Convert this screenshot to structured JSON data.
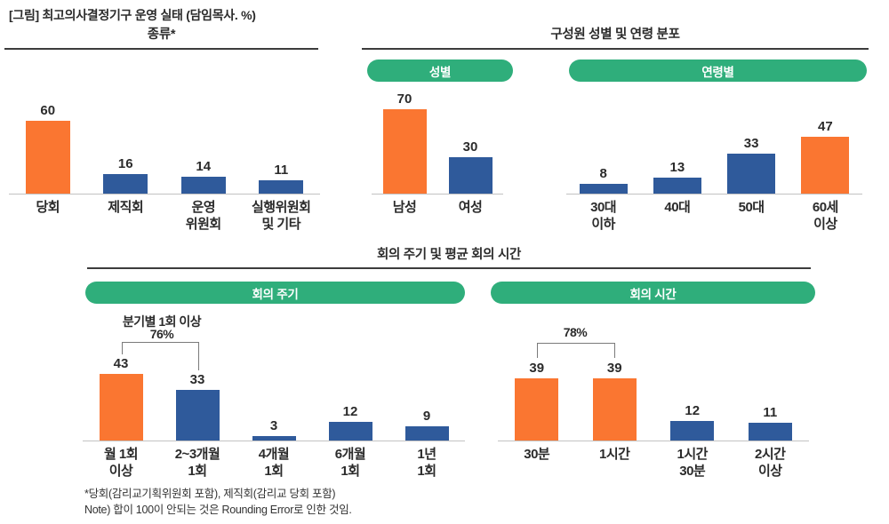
{
  "page": {
    "title": "[그림] 최고의사결정기구 운영 실태 (담임목사. %)"
  },
  "palette": {
    "orange": "#FA7631",
    "blue": "#2F5A9B",
    "green": "#2FAE7B",
    "axis_gray": "#C2C2C2",
    "rule_dark": "#3C3C3C"
  },
  "sections": {
    "type": {
      "title": "종류*"
    },
    "composition": {
      "title": "구성원 성별 및 연령 분포",
      "pills": {
        "gender": "성별",
        "age": "연령별"
      }
    },
    "meeting": {
      "title": "회의 주기 및 평균 회의 시간",
      "pills": {
        "cycle": "회의 주기",
        "duration": "회의 시간"
      }
    }
  },
  "annotations": {
    "cycle": {
      "label": "분기별 1회 이상",
      "percent": "76%"
    },
    "duration": {
      "percent": "78%"
    }
  },
  "footnotes": [
    "*당회(감리교기획위원회 포함), 제직회(감리교 당회 포함)",
    "Note) 합이 100이 안되는 것은 Rounding Error로 인한 것임."
  ],
  "chart_data": [
    {
      "id": "type",
      "type": "bar",
      "title": "종류*",
      "categories": [
        [
          "당회"
        ],
        [
          "제직회"
        ],
        [
          "운영",
          "위원회"
        ],
        [
          "실행위원회",
          "및 기타"
        ]
      ],
      "values": [
        60,
        16,
        14,
        11
      ],
      "highlight_indices": [
        0
      ],
      "ylim": [
        0,
        80
      ],
      "unit": "%",
      "grid": false,
      "legend": "none"
    },
    {
      "id": "gender",
      "type": "bar",
      "title": "성별",
      "categories": [
        [
          "남성"
        ],
        [
          "여성"
        ]
      ],
      "values": [
        70,
        30
      ],
      "highlight_indices": [
        0
      ],
      "ylim": [
        0,
        85
      ],
      "unit": "%",
      "grid": false,
      "legend": "none"
    },
    {
      "id": "age",
      "type": "bar",
      "title": "연령별",
      "categories": [
        [
          "30대",
          "이하"
        ],
        [
          "40대"
        ],
        [
          "50대"
        ],
        [
          "60세",
          "이상"
        ]
      ],
      "values": [
        8,
        13,
        33,
        47
      ],
      "highlight_indices": [
        3
      ],
      "ylim": [
        0,
        80
      ],
      "unit": "%",
      "grid": false,
      "legend": "none"
    },
    {
      "id": "cycle",
      "type": "bar",
      "title": "회의 주기",
      "categories": [
        [
          "월 1회",
          "이상"
        ],
        [
          "2~3개월",
          "1회"
        ],
        [
          "4개월",
          "1회"
        ],
        [
          "6개월",
          "1회"
        ],
        [
          "1년",
          "1회"
        ]
      ],
      "values": [
        43,
        33,
        3,
        12,
        9
      ],
      "highlight_indices": [
        0
      ],
      "annotation": {
        "label": "분기별 1회 이상",
        "percent": "76%",
        "covers_indices": [
          0,
          1
        ]
      },
      "ylim": [
        0,
        57
      ],
      "unit": "%",
      "grid": false,
      "legend": "none"
    },
    {
      "id": "duration",
      "type": "bar",
      "title": "회의 시간",
      "categories": [
        [
          "30분"
        ],
        [
          "1시간"
        ],
        [
          "1시간",
          "30분"
        ],
        [
          "2시간",
          "이상"
        ]
      ],
      "values": [
        39,
        39,
        12,
        11
      ],
      "highlight_indices": [
        0,
        1
      ],
      "annotation": {
        "percent": "78%",
        "covers_indices": [
          0,
          1
        ]
      },
      "ylim": [
        0,
        55
      ],
      "unit": "%",
      "grid": false,
      "legend": "none"
    }
  ]
}
